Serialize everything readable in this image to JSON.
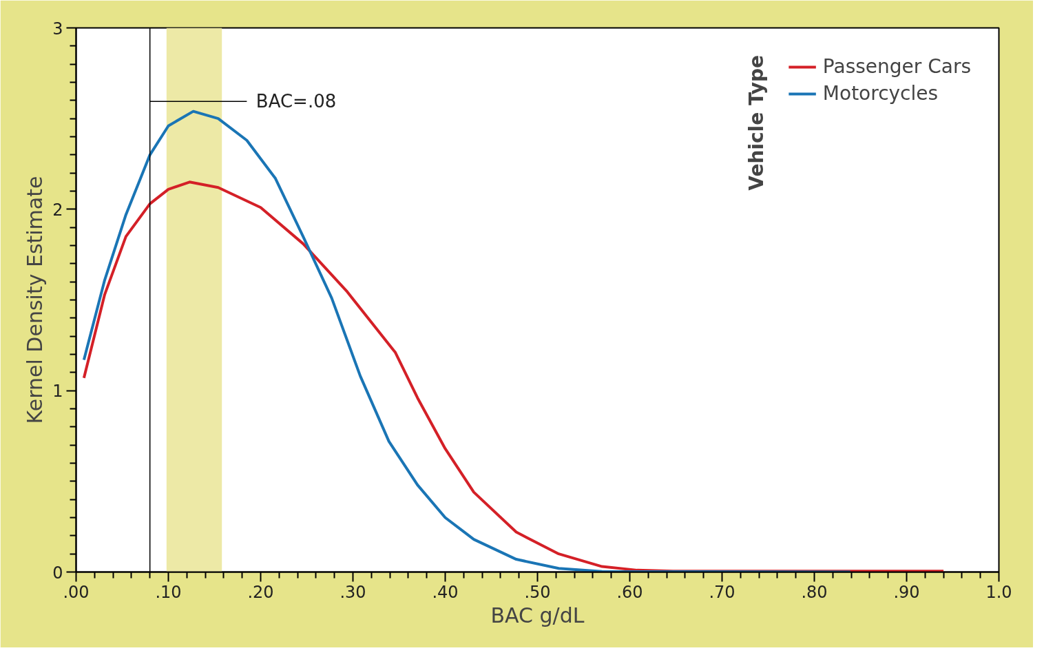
{
  "chart_data": {
    "type": "line",
    "xlabel": "BAC g/dL",
    "ylabel": "Kernel Density Estimate",
    "legend_title": "Vehicle Type",
    "legend": "top right",
    "grid": false,
    "marker": "none",
    "line_style": "solid",
    "xlim": [
      0,
      1.0
    ],
    "ylim": [
      0,
      3
    ],
    "xticks": [
      {
        "value": 0,
        "label": ".00"
      },
      {
        "value": 0.02,
        "label": null
      },
      {
        "value": 0.04,
        "label": null
      },
      {
        "value": 0.06,
        "label": null
      },
      {
        "value": 0.08,
        "label": null
      },
      {
        "value": 0.1,
        "label": ".10"
      },
      {
        "value": 0.12,
        "label": null
      },
      {
        "value": 0.14,
        "label": null
      },
      {
        "value": 0.16,
        "label": null
      },
      {
        "value": 0.18,
        "label": null
      },
      {
        "value": 0.2,
        "label": ".20"
      },
      {
        "value": 0.22,
        "label": null
      },
      {
        "value": 0.24,
        "label": null
      },
      {
        "value": 0.26,
        "label": null
      },
      {
        "value": 0.28,
        "label": null
      },
      {
        "value": 0.3,
        "label": ".30"
      },
      {
        "value": 0.32,
        "label": null
      },
      {
        "value": 0.34,
        "label": null
      },
      {
        "value": 0.36,
        "label": null
      },
      {
        "value": 0.38,
        "label": null
      },
      {
        "value": 0.4,
        "label": ".40"
      },
      {
        "value": 0.42,
        "label": null
      },
      {
        "value": 0.44,
        "label": null
      },
      {
        "value": 0.46,
        "label": null
      },
      {
        "value": 0.48,
        "label": null
      },
      {
        "value": 0.5,
        "label": ".50"
      },
      {
        "value": 0.52,
        "label": null
      },
      {
        "value": 0.54,
        "label": null
      },
      {
        "value": 0.56,
        "label": null
      },
      {
        "value": 0.58,
        "label": null
      },
      {
        "value": 0.6,
        "label": ".60"
      },
      {
        "value": 0.62,
        "label": null
      },
      {
        "value": 0.64,
        "label": null
      },
      {
        "value": 0.66,
        "label": null
      },
      {
        "value": 0.68,
        "label": null
      },
      {
        "value": 0.7,
        "label": ".70"
      },
      {
        "value": 0.72,
        "label": null
      },
      {
        "value": 0.74,
        "label": null
      },
      {
        "value": 0.76,
        "label": null
      },
      {
        "value": 0.78,
        "label": null
      },
      {
        "value": 0.8,
        "label": ".80"
      },
      {
        "value": 0.82,
        "label": null
      },
      {
        "value": 0.84,
        "label": null
      },
      {
        "value": 0.86,
        "label": null
      },
      {
        "value": 0.88,
        "label": null
      },
      {
        "value": 0.9,
        "label": ".90"
      },
      {
        "value": 0.92,
        "label": null
      },
      {
        "value": 0.94,
        "label": null
      },
      {
        "value": 0.96,
        "label": null
      },
      {
        "value": 0.98,
        "label": null
      },
      {
        "value": 1.0,
        "label": "1.0"
      }
    ],
    "yticks": [
      0,
      {
        "value": 0.1,
        "label": null
      },
      {
        "value": 0.2,
        "label": null
      },
      {
        "value": 0.3,
        "label": null
      },
      {
        "value": 0.4,
        "label": null
      },
      {
        "value": 0.5,
        "label": null
      },
      {
        "value": 0.6,
        "label": null
      },
      {
        "value": 0.7,
        "label": null
      },
      {
        "value": 0.8,
        "label": null
      },
      {
        "value": 0.9,
        "label": null
      },
      1,
      {
        "value": 1.1,
        "label": null
      },
      {
        "value": 1.2,
        "label": null
      },
      {
        "value": 1.3,
        "label": null
      },
      {
        "value": 1.4,
        "label": null
      },
      {
        "value": 1.5,
        "label": null
      },
      {
        "value": 1.6,
        "label": null
      },
      {
        "value": 1.7,
        "label": null
      },
      {
        "value": 1.8,
        "label": null
      },
      {
        "value": 1.9,
        "label": null
      },
      2,
      {
        "value": 2.1,
        "label": null
      },
      {
        "value": 2.2,
        "label": null
      },
      {
        "value": 2.3,
        "label": null
      },
      {
        "value": 2.4,
        "label": null
      },
      {
        "value": 2.5,
        "label": null
      },
      {
        "value": 2.6,
        "label": null
      },
      {
        "value": 2.7,
        "label": null
      },
      {
        "value": 2.8,
        "label": null
      },
      {
        "value": 2.9,
        "label": null
      },
      3
    ],
    "ref_lines": [
      {
        "axis": "x",
        "value": 0.08,
        "label": "BAC=.08",
        "color": "#000000"
      }
    ],
    "bands": [
      {
        "axis": "x",
        "from": 0.098,
        "to": 0.158,
        "color": "#ede9a6"
      }
    ],
    "series": [
      {
        "name": "Passenger Cars",
        "color": "#d42027",
        "x": [
          0.0085,
          0.031,
          0.054,
          0.08,
          0.1,
          0.123,
          0.154,
          0.2,
          0.246,
          0.293,
          0.346,
          0.37,
          0.4,
          0.431,
          0.477,
          0.523,
          0.57,
          0.608,
          0.647,
          0.94
        ],
        "values": [
          1.07,
          1.53,
          1.85,
          2.03,
          2.11,
          2.15,
          2.12,
          2.01,
          1.81,
          1.55,
          1.21,
          0.96,
          0.68,
          0.44,
          0.22,
          0.1,
          0.03,
          0.01,
          0.005,
          0.005
        ]
      },
      {
        "name": "Motorcycles",
        "color": "#1a75b5",
        "x": [
          0.0085,
          0.031,
          0.054,
          0.08,
          0.1,
          0.127,
          0.154,
          0.185,
          0.216,
          0.246,
          0.277,
          0.308,
          0.339,
          0.37,
          0.4,
          0.431,
          0.477,
          0.523,
          0.57,
          0.839
        ],
        "values": [
          1.17,
          1.61,
          1.97,
          2.3,
          2.46,
          2.54,
          2.5,
          2.38,
          2.17,
          1.85,
          1.51,
          1.08,
          0.72,
          0.48,
          0.3,
          0.18,
          0.07,
          0.02,
          0.003,
          0
        ]
      }
    ]
  }
}
